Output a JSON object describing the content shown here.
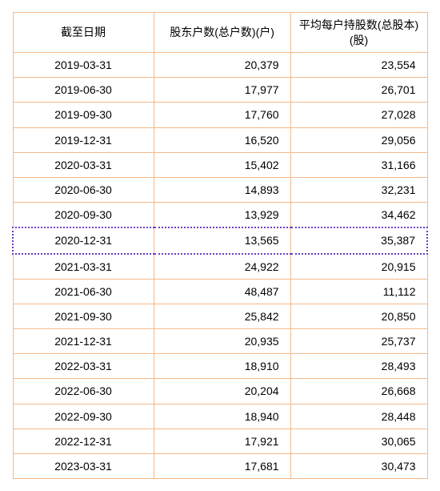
{
  "table": {
    "columns": [
      "截至日期",
      "股东户数(总户数)(户)",
      "平均每户持股数(总股本)(股)"
    ],
    "column_align": [
      "center",
      "right",
      "right"
    ],
    "column_widths_pct": [
      34,
      33,
      33
    ],
    "header_fontsize": 14,
    "cell_fontsize": 14,
    "border_color": "#f3b98a",
    "highlight_border_color": "#6a3fc5",
    "highlight_border_style": "dotted",
    "background_color": "#ffffff",
    "highlighted_row_index": 7,
    "rows": [
      [
        "2019-03-31",
        "20,379",
        "23,554"
      ],
      [
        "2019-06-30",
        "17,977",
        "26,701"
      ],
      [
        "2019-09-30",
        "17,760",
        "27,028"
      ],
      [
        "2019-12-31",
        "16,520",
        "29,056"
      ],
      [
        "2020-03-31",
        "15,402",
        "31,166"
      ],
      [
        "2020-06-30",
        "14,893",
        "32,231"
      ],
      [
        "2020-09-30",
        "13,929",
        "34,462"
      ],
      [
        "2020-12-31",
        "13,565",
        "35,387"
      ],
      [
        "2021-03-31",
        "24,922",
        "20,915"
      ],
      [
        "2021-06-30",
        "48,487",
        "11,112"
      ],
      [
        "2021-09-30",
        "25,842",
        "20,850"
      ],
      [
        "2021-12-31",
        "20,935",
        "25,737"
      ],
      [
        "2022-03-31",
        "18,910",
        "28,493"
      ],
      [
        "2022-06-30",
        "20,204",
        "26,668"
      ],
      [
        "2022-09-30",
        "18,940",
        "28,448"
      ],
      [
        "2022-12-31",
        "17,921",
        "30,065"
      ],
      [
        "2023-03-31",
        "17,681",
        "30,473"
      ]
    ]
  }
}
